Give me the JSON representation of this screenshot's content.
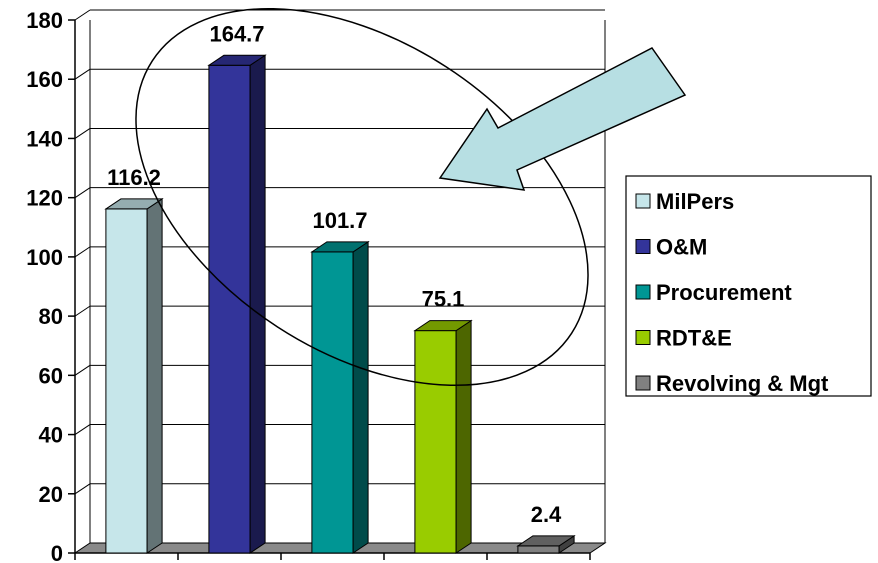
{
  "chart_data": {
    "type": "bar",
    "categories": [
      "MilPers",
      "O&M",
      "Procurement",
      "RDT&E",
      "Revolving & Mgt"
    ],
    "values": [
      116.2,
      164.7,
      101.7,
      75.1,
      2.4
    ],
    "data_labels": [
      "116.2",
      "164.7",
      "101.7",
      "75.1",
      "2.4"
    ],
    "y_ticks": [
      "0",
      "20",
      "40",
      "60",
      "80",
      "100",
      "120",
      "140",
      "160",
      "180"
    ],
    "ylim": [
      0,
      180
    ],
    "grid": true,
    "three_d": true,
    "legend_position": "right",
    "colors": {
      "MilPers": "#c6e6ea",
      "O&M": "#33349a",
      "Procurement": "#009694",
      "RDT&E": "#99cc00",
      "Revolving & Mgt": "#808080"
    },
    "annotations": [
      "ellipse-highlight",
      "arrow-pointing-left"
    ]
  }
}
